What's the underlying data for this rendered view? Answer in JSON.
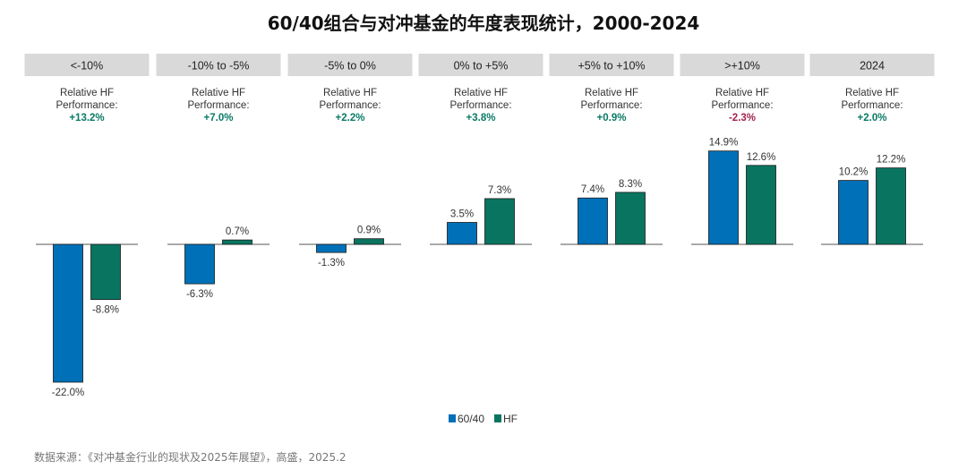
{
  "title": "60/40组合与对冲基金的年度表现统计，2000-2024",
  "source": "数据来源：《对冲基金行业的现状及2025年展望》，高盛，2025.2",
  "colors": {
    "s6040": "#0070b8",
    "hf": "#097560",
    "pos": "#0a7a66",
    "neg": "#a3224f",
    "header_bg": "#d9d9d9"
  },
  "chart_data": {
    "type": "bar",
    "categories": [
      "<-10%",
      "-10% to -5%",
      "-5% to 0%",
      "0% to +5%",
      "+5% to +10%",
      ">+10%",
      "2024"
    ],
    "series": [
      {
        "name": "60/40",
        "values": [
          -22.0,
          -6.3,
          -1.3,
          3.5,
          7.4,
          14.9,
          10.2
        ],
        "labels": [
          "-22.0%",
          "-6.3%",
          "-1.3%",
          "3.5%",
          "7.4%",
          "14.9%",
          "10.2%"
        ]
      },
      {
        "name": "HF",
        "values": [
          -8.8,
          0.7,
          0.9,
          7.3,
          8.3,
          12.6,
          12.2
        ],
        "labels": [
          "-8.8%",
          "0.7%",
          "0.9%",
          "7.3%",
          "8.3%",
          "12.6%",
          "12.2%"
        ]
      }
    ],
    "annotation_line1": "Relative HF",
    "annotation_line2": "Performance:",
    "relative_performance": [
      "+13.2%",
      "+7.0%",
      "+2.2%",
      "+3.8%",
      "+0.9%",
      "-2.3%",
      "+2.0%"
    ],
    "legend_placement": "bottom-center",
    "grid": false
  }
}
